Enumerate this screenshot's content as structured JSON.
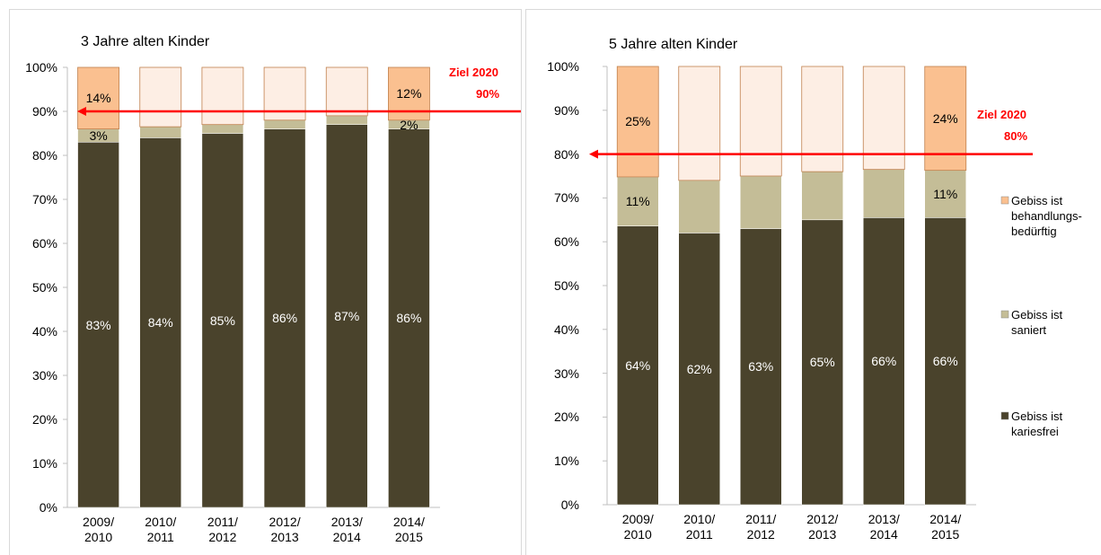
{
  "chart_data": [
    {
      "type": "stacked_bar",
      "title": "3 Jahre alten Kinder",
      "categories": [
        "2009/ 2010",
        "2010/ 2011",
        "2011/ 2012",
        "2012/ 2013",
        "2013/ 2014",
        "2014/ 2015"
      ],
      "series": [
        {
          "name": "Gebiss ist kariesfrei",
          "color": "#4a432c",
          "values": [
            83,
            84,
            85,
            86,
            87,
            86
          ],
          "value_labels": [
            "83%",
            "84%",
            "85%",
            "86%",
            "87%",
            "86%"
          ]
        },
        {
          "name": "Gebiss ist saniert",
          "color": "#c4bd97",
          "values": [
            3,
            2.5,
            2,
            2,
            2,
            2
          ],
          "value_labels": [
            "3%",
            null,
            null,
            null,
            null,
            "2%"
          ]
        },
        {
          "name": "Gebiss ist behandlungs-bedürftig",
          "color": "#fac090",
          "point_colors": [
            "#fac090",
            "#fdeee4",
            "#fdeee4",
            "#fdeee4",
            "#fdeee4",
            "#fac090"
          ],
          "values": [
            14,
            13.5,
            13,
            12,
            11,
            12
          ],
          "value_labels": [
            "14%",
            null,
            null,
            null,
            null,
            "12%"
          ]
        }
      ],
      "ylim": [
        0,
        100
      ],
      "yticks": [
        {
          "value": 0,
          "label": "0%"
        },
        {
          "value": 10,
          "label": "10%"
        },
        {
          "value": 20,
          "label": "20%"
        },
        {
          "value": 30,
          "label": "30%"
        },
        {
          "value": 40,
          "label": "40%"
        },
        {
          "value": 50,
          "label": "50%"
        },
        {
          "value": 60,
          "label": "60%"
        },
        {
          "value": 70,
          "label": "70%"
        },
        {
          "value": 80,
          "label": "80%"
        },
        {
          "value": 90,
          "label": "90%"
        },
        {
          "value": 100,
          "label": "100%"
        }
      ],
      "target": 90,
      "target_title": "Ziel 2020",
      "target_label": "90%",
      "target_color": "#ff0000",
      "legend": false
    },
    {
      "type": "stacked_bar",
      "title": "5 Jahre alten Kinder",
      "categories": [
        "2009/ 2010",
        "2010/ 2011",
        "2011/ 2012",
        "2012/ 2013",
        "2013/ 2014",
        "2014/ 2015"
      ],
      "series": [
        {
          "name": "Gebiss ist kariesfrei",
          "color": "#4a432c",
          "values": [
            63.6,
            62,
            63,
            65,
            65.5,
            65.5
          ],
          "value_labels": [
            "64%",
            "62%",
            "63%",
            "65%",
            "66%",
            "66%"
          ]
        },
        {
          "name": "Gebiss ist saniert",
          "color": "#c4bd97",
          "values": [
            11.2,
            12,
            12,
            11,
            11,
            10.8
          ],
          "value_labels": [
            "11%",
            null,
            null,
            null,
            null,
            "11%"
          ]
        },
        {
          "name": "Gebiss ist behandlungs-bedürftig",
          "color": "#fac090",
          "point_colors": [
            "#fac090",
            "#fdeee4",
            "#fdeee4",
            "#fdeee4",
            "#fdeee4",
            "#fac090"
          ],
          "values": [
            25.2,
            26,
            25,
            24,
            23.5,
            23.7
          ],
          "value_labels": [
            "25%",
            null,
            null,
            null,
            null,
            "24%"
          ]
        }
      ],
      "ylim": [
        0,
        100
      ],
      "yticks": [
        {
          "value": 0,
          "label": "0%"
        },
        {
          "value": 10,
          "label": "10%"
        },
        {
          "value": 20,
          "label": "20%"
        },
        {
          "value": 30,
          "label": "30%"
        },
        {
          "value": 40,
          "label": "40%"
        },
        {
          "value": 50,
          "label": "50%"
        },
        {
          "value": 60,
          "label": "60%"
        },
        {
          "value": 70,
          "label": "70%"
        },
        {
          "value": 80,
          "label": "80%"
        },
        {
          "value": 90,
          "label": "90%"
        },
        {
          "value": 100,
          "label": "100%"
        }
      ],
      "target": 80,
      "target_title": "Ziel 2020",
      "target_label": "80%",
      "target_color": "#ff0000",
      "legend": "right"
    }
  ]
}
